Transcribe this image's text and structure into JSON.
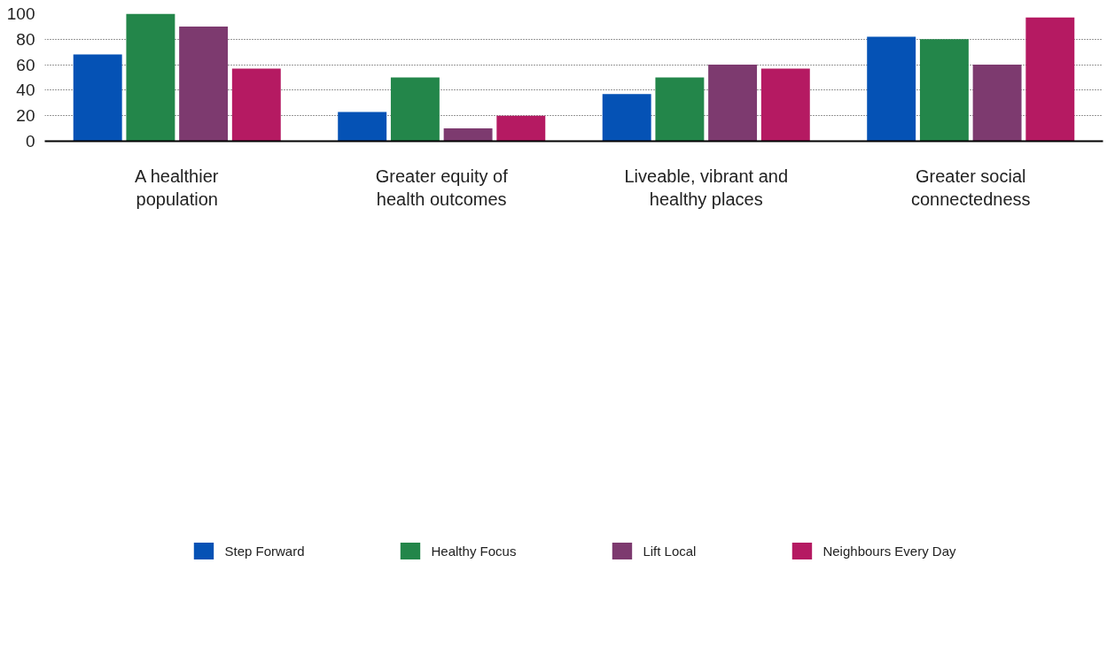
{
  "chart_data": {
    "type": "bar",
    "categories": [
      "A healthier population",
      "Greater equity of health outcomes",
      "Liveable, vibrant and healthy places",
      "Greater social connectedness"
    ],
    "series": [
      {
        "name": "Step Forward",
        "color": "#0552b5",
        "values": [
          68,
          23,
          37,
          82
        ]
      },
      {
        "name": "Healthy Focus",
        "color": "#23864a",
        "values": [
          100,
          50,
          50,
          80
        ]
      },
      {
        "name": "Lift Local",
        "color": "#7d3a6f",
        "values": [
          90,
          10,
          60,
          60
        ]
      },
      {
        "name": "Neighbours Every Day",
        "color": "#b51a62",
        "values": [
          57,
          20,
          57,
          97
        ]
      }
    ],
    "ylim": [
      0,
      100
    ],
    "yticks": [
      0,
      20,
      40,
      60,
      80,
      100
    ],
    "grid": "y",
    "legend": "bottom"
  }
}
